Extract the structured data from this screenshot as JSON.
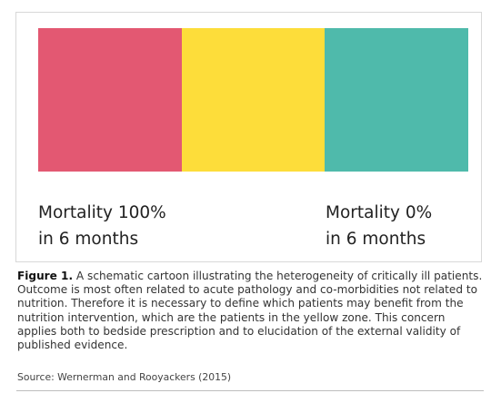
{
  "diagram": {
    "bands": [
      {
        "name": "red-zone",
        "color": "#e35872"
      },
      {
        "name": "yellow-zone",
        "color": "#fddd3a"
      },
      {
        "name": "teal-zone",
        "color": "#4fbaab"
      }
    ],
    "left_label": {
      "line1": "Mortality 100%",
      "line2": "in 6 months"
    },
    "right_label": {
      "line1": "Mortality 0%",
      "line2": "in 6 months"
    }
  },
  "caption": {
    "figure_label": "Figure 1.",
    "text": " A schematic cartoon illustrating the heterogeneity of critically ill patients. Outcome is most often related to acute pathology and co-morbidities not related to nutrition. Therefore it is necessary to define which patients may benefit from the nutrition intervention, which are the patients in the yellow zone. This concern applies both to bedside prescription and to elucidation of the external validity of published evidence."
  },
  "source": "Source: Wernerman and Rooyackers (2015)"
}
